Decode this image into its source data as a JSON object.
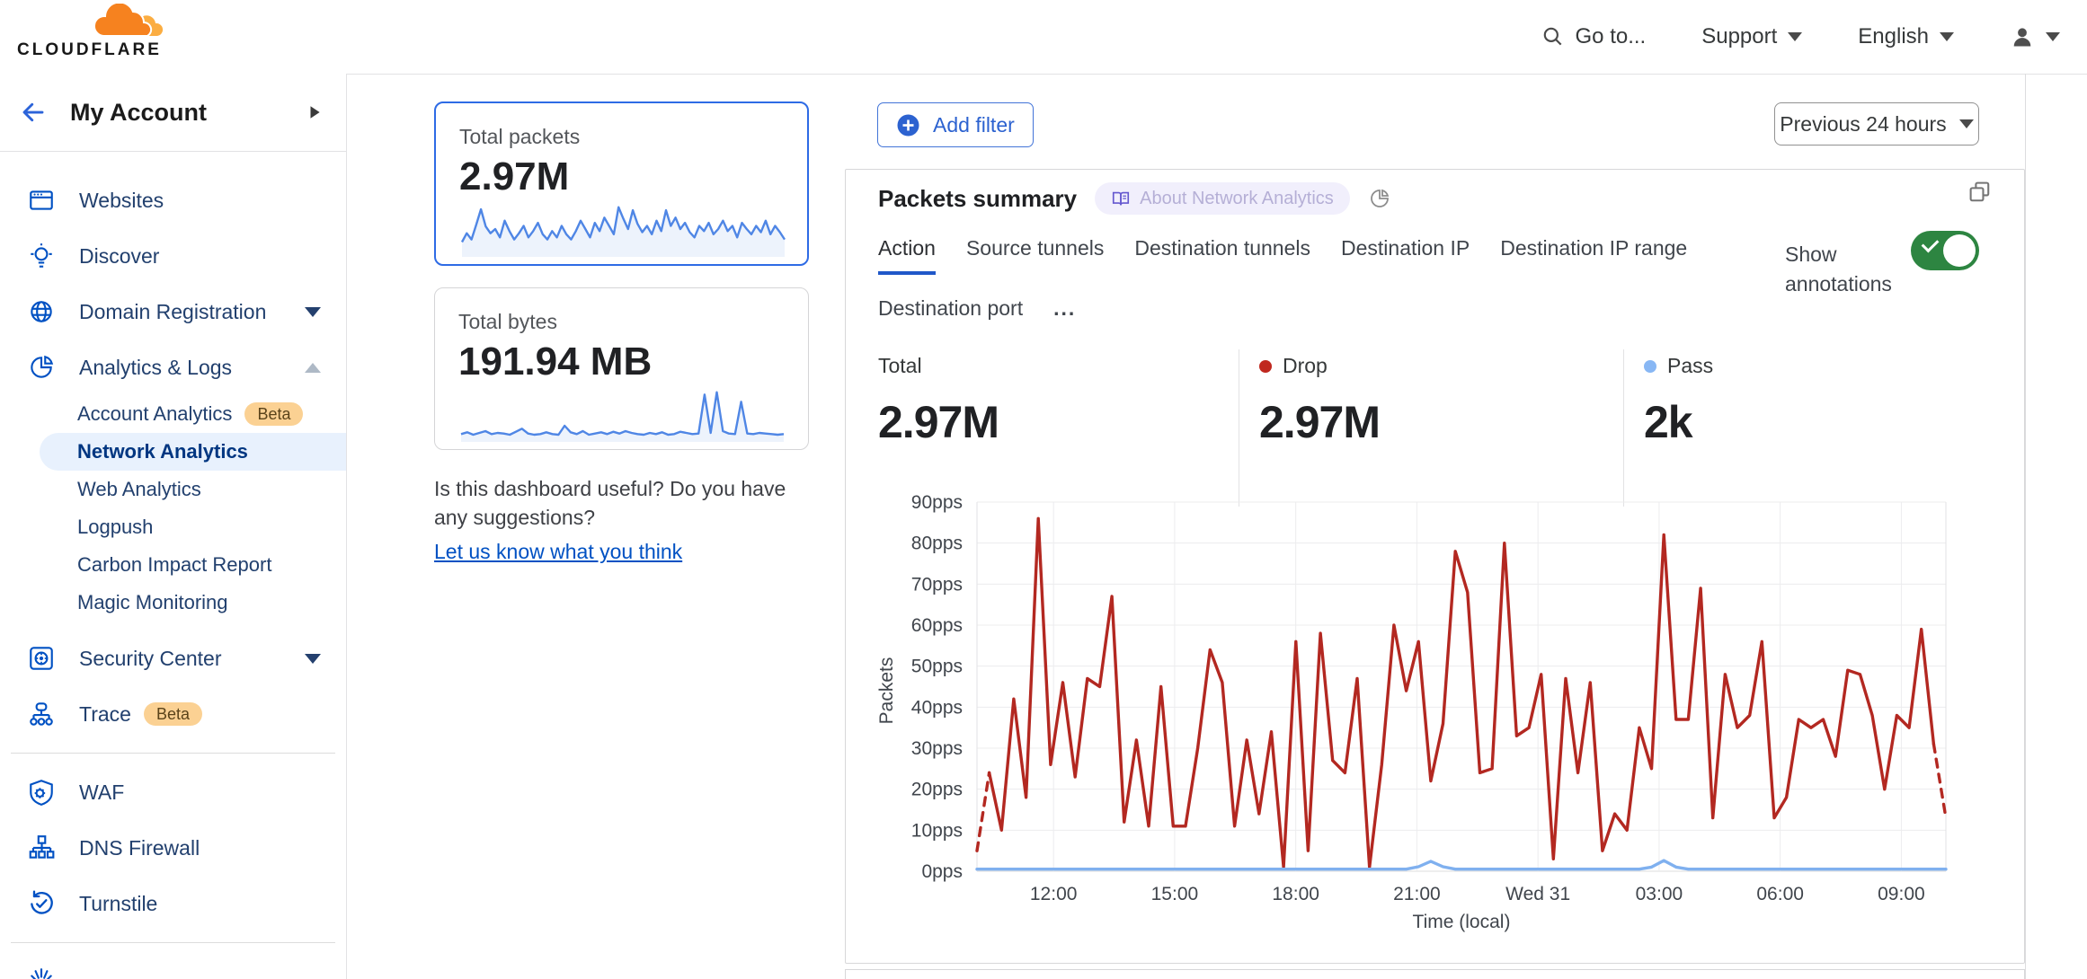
{
  "header": {
    "brand": "CLOUDFLARE",
    "goto_label": "Go to...",
    "support_label": "Support",
    "language_label": "English"
  },
  "sidebar": {
    "title": "My Account",
    "items": [
      {
        "label": "Websites"
      },
      {
        "label": "Discover"
      },
      {
        "label": "Domain Registration"
      },
      {
        "label": "Analytics & Logs"
      },
      {
        "label": "Account Analytics",
        "badge": "Beta"
      },
      {
        "label": "Network Analytics"
      },
      {
        "label": "Web Analytics"
      },
      {
        "label": "Logpush"
      },
      {
        "label": "Carbon Impact Report"
      },
      {
        "label": "Magic Monitoring"
      },
      {
        "label": "Security Center"
      },
      {
        "label": "Trace",
        "badge": "Beta"
      },
      {
        "label": "WAF"
      },
      {
        "label": "DNS Firewall"
      },
      {
        "label": "Turnstile"
      }
    ]
  },
  "summary_cards": {
    "packets": {
      "label": "Total packets",
      "value": "2.97M"
    },
    "bytes": {
      "label": "Total bytes",
      "value": "191.94 MB"
    }
  },
  "feedback": {
    "question": "Is this dashboard useful? Do you have any suggestions?",
    "link": "Let us know what you think"
  },
  "toolbar": {
    "add_filter_label": "Add filter",
    "time_range_label": "Previous 24 hours"
  },
  "panel": {
    "title": "Packets summary",
    "about_tag": "About Network Analytics",
    "tabs": [
      "Action",
      "Source tunnels",
      "Destination tunnels",
      "Destination IP",
      "Destination IP range",
      "Destination port",
      "..."
    ],
    "active_tab": "Action",
    "show_annotations_label": "Show annotations",
    "annotations_on": true,
    "stats": [
      {
        "label": "Total",
        "value": "2.97M",
        "dot": null
      },
      {
        "label": "Drop",
        "value": "2.97M",
        "dot": "#c0281f"
      },
      {
        "label": "Pass",
        "value": "2k",
        "dot": "#88b7f4"
      }
    ]
  },
  "colors": {
    "accent_blue": "#0051c3",
    "selected_card_border": "#2e6be5",
    "toggle_on_green": "#2d8541",
    "drop_red": "#b32821",
    "pass_blue": "#7fb0ef",
    "brand_orange": "#f6821f",
    "brand_orange_light": "#fbad41",
    "beta_badge_bg": "#fbd193"
  },
  "chart_data": [
    {
      "name": "packets-summary-timeseries",
      "type": "line",
      "title": "Packets summary",
      "xlabel": "Time (local)",
      "ylabel": "Packets",
      "ylim": [
        0,
        90
      ],
      "grid": true,
      "legend_position": "none",
      "yticks": [
        "0pps",
        "10pps",
        "20pps",
        "30pps",
        "40pps",
        "50pps",
        "60pps",
        "70pps",
        "80pps",
        "90pps"
      ],
      "xticks": [
        {
          "label": "12:00",
          "f": 0.079
        },
        {
          "label": "15:00",
          "f": 0.204
        },
        {
          "label": "18:00",
          "f": 0.329
        },
        {
          "label": "21:00",
          "f": 0.454
        },
        {
          "label": "Wed 31",
          "f": 0.579
        },
        {
          "label": "03:00",
          "f": 0.704
        },
        {
          "label": "06:00",
          "f": 0.829
        },
        {
          "label": "09:00",
          "f": 0.954
        }
      ],
      "series": [
        {
          "name": "Drop",
          "color": "#b32821",
          "dashed_ends": true,
          "values": [
            5,
            24,
            10,
            42,
            18,
            86,
            26,
            46,
            23,
            47,
            45,
            67,
            12,
            32,
            11,
            45,
            11,
            11,
            30,
            54,
            46,
            11,
            32,
            14,
            34,
            1,
            56,
            5,
            58,
            27,
            24,
            47,
            1,
            26,
            60,
            44,
            56,
            22,
            36,
            78,
            68,
            24,
            25,
            80,
            33,
            35,
            48,
            3,
            47,
            24,
            46,
            5,
            14,
            10,
            35,
            25,
            82,
            37,
            37,
            69,
            13,
            48,
            35,
            38,
            56,
            13,
            18,
            37,
            35,
            37,
            28,
            49,
            48,
            38,
            20,
            38,
            35,
            59,
            31,
            13
          ]
        },
        {
          "name": "Pass",
          "color": "#7fb0ef",
          "dashed_ends": false,
          "values": [
            0.5,
            0.5,
            0.5,
            0.5,
            0.5,
            0.5,
            0.5,
            0.5,
            0.5,
            0.5,
            0.5,
            0.5,
            0.5,
            0.5,
            0.5,
            0.5,
            0.5,
            0.5,
            0.5,
            0.5,
            0.5,
            0.5,
            0.5,
            0.5,
            0.5,
            0.5,
            0.5,
            0.5,
            0.5,
            0.5,
            0.5,
            0.5,
            0.5,
            0.5,
            0.5,
            0.5,
            1.1,
            2.4,
            1.1,
            0.5,
            0.5,
            0.5,
            0.5,
            0.5,
            0.5,
            0.5,
            0.5,
            0.5,
            0.5,
            0.5,
            0.5,
            0.5,
            0.5,
            0.5,
            0.5,
            1.0,
            2.6,
            1.0,
            0.5,
            0.5,
            0.5,
            0.5,
            0.5,
            0.5,
            0.5,
            0.5,
            0.5,
            0.5,
            0.5,
            0.5,
            0.5,
            0.5,
            0.5,
            0.5,
            0.5,
            0.5,
            0.5,
            0.5,
            0.5,
            0.5
          ]
        }
      ]
    },
    {
      "name": "total-packets-sparkline",
      "type": "area",
      "color": "#4f86e5",
      "values": [
        25,
        42,
        30,
        58,
        88,
        55,
        42,
        50,
        34,
        66,
        46,
        30,
        42,
        56,
        34,
        46,
        62,
        40,
        30,
        46,
        34,
        56,
        40,
        30,
        46,
        66,
        50,
        34,
        62,
        46,
        72,
        56,
        40,
        92,
        70,
        50,
        86,
        60,
        44,
        56,
        40,
        66,
        46,
        86,
        56,
        72,
        50,
        62,
        44,
        34,
        56,
        46,
        62,
        40,
        50,
        66,
        46,
        56,
        34,
        62,
        50,
        40,
        56,
        44,
        66,
        40,
        56,
        44,
        30
      ]
    },
    {
      "name": "total-bytes-sparkline",
      "type": "area",
      "color": "#4f86e5",
      "values": [
        10,
        13,
        9,
        12,
        15,
        10,
        12,
        11,
        9,
        14,
        19,
        11,
        9,
        10,
        13,
        10,
        9,
        24,
        13,
        10,
        15,
        9,
        11,
        13,
        10,
        14,
        11,
        15,
        12,
        10,
        9,
        12,
        10,
        13,
        9,
        10,
        14,
        12,
        10,
        11,
        76,
        12,
        80,
        15,
        11,
        10,
        64,
        11,
        10,
        12,
        11,
        10,
        9,
        10
      ]
    }
  ]
}
